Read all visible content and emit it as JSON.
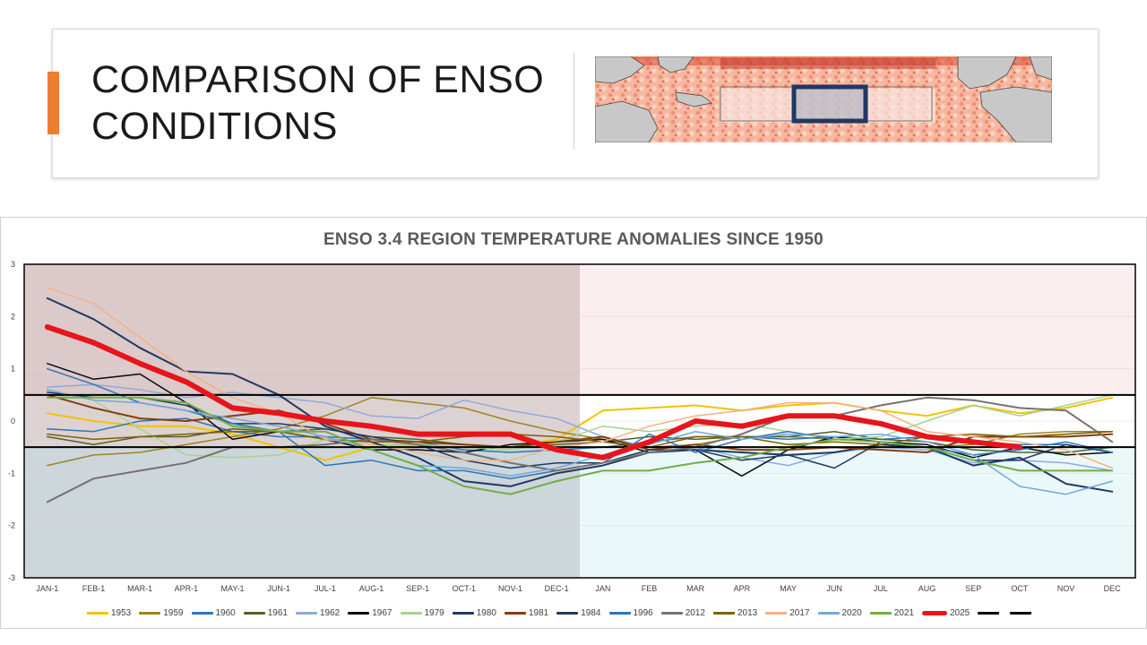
{
  "slide": {
    "title_line1": "COMPARISON OF ENSO",
    "title_line2": "CONDITIONS",
    "accent_color": "#ed7d31"
  },
  "map": {
    "description_icon": "sst-anomaly-map-icon"
  },
  "chart_data": {
    "type": "line",
    "title": "ENSO 3.4 REGION TEMPERATURE ANOMALIES SINCE 1950",
    "xlabel": "",
    "ylabel": "",
    "ylim": [
      -3,
      3
    ],
    "yticks": [
      "3",
      "2",
      "1",
      "0",
      "-1",
      "-2",
      "-3"
    ],
    "categories": [
      "JAN-1",
      "FEB-1",
      "MAR-1",
      "APR-1",
      "MAY-1",
      "JUN-1",
      "JUL-1",
      "AUG-1",
      "SEP-1",
      "OCT-1",
      "NOV-1",
      "DEC-1",
      "JAN",
      "FEB",
      "MAR",
      "APR",
      "MAY",
      "JUN",
      "JUL",
      "AUG",
      "SEP",
      "OCT",
      "NOV",
      "DEC"
    ],
    "regions": [
      {
        "name": "prior-year-warm",
        "y_range": [
          0.5,
          3
        ],
        "x_range": [
          0,
          12
        ],
        "color": "#dcc9c9"
      },
      {
        "name": "prior-year-neutral",
        "y_range": [
          -0.5,
          0.5
        ],
        "x_range": [
          0,
          12
        ],
        "color": "#ddd2d2"
      },
      {
        "name": "prior-year-cool",
        "y_range": [
          -3,
          -0.5
        ],
        "x_range": [
          0,
          12
        ],
        "color": "#cdd6da"
      },
      {
        "name": "current-year-warm",
        "y_range": [
          0.5,
          3
        ],
        "x_range": [
          12,
          24
        ],
        "color": "#fbeeee"
      },
      {
        "name": "current-year-neutral",
        "y_range": [
          -0.5,
          0.5
        ],
        "x_range": [
          12,
          24
        ],
        "color": "#ffffff"
      },
      {
        "name": "current-year-cool",
        "y_range": [
          -3,
          -0.5
        ],
        "x_range": [
          12,
          24
        ],
        "color": "#ebf8fa"
      }
    ],
    "thresholds": [
      0.5,
      -0.5
    ],
    "series": [
      {
        "name": "1953",
        "color": "#f2c200",
        "width": 2,
        "values": [
          0.15,
          0.0,
          -0.1,
          -0.1,
          -0.25,
          -0.5,
          -0.75,
          -0.5,
          -0.45,
          -0.5,
          -0.5,
          -0.35,
          0.2,
          0.25,
          0.3,
          0.2,
          0.3,
          0.35,
          0.2,
          0.1,
          0.3,
          0.15,
          0.25,
          0.45
        ]
      },
      {
        "name": "1959",
        "color": "#9c8420",
        "width": 1.5,
        "values": [
          -0.85,
          -0.65,
          -0.6,
          -0.45,
          -0.3,
          -0.15,
          0.1,
          0.45,
          0.35,
          0.25,
          0.0,
          -0.2,
          -0.35,
          -0.5,
          -0.45,
          -0.3,
          -0.3,
          -0.35,
          -0.4,
          -0.5,
          -0.45,
          -0.25,
          -0.2,
          -0.2
        ]
      },
      {
        "name": "1960",
        "color": "#2e75b6",
        "width": 1.5,
        "values": [
          -0.15,
          -0.2,
          0.0,
          0.05,
          -0.2,
          -0.3,
          -0.3,
          -0.35,
          -0.4,
          -0.55,
          -0.6,
          -0.55,
          -0.5,
          -0.4,
          -0.3,
          -0.3,
          -0.35,
          -0.3,
          -0.35,
          -0.3,
          -0.4,
          -0.45,
          -0.45,
          -0.6
        ]
      },
      {
        "name": "1961",
        "color": "#4f6228",
        "width": 1.5,
        "values": [
          -0.3,
          -0.45,
          -0.3,
          -0.3,
          -0.15,
          -0.2,
          -0.15,
          -0.3,
          -0.35,
          -0.45,
          -0.5,
          -0.45,
          -0.4,
          -0.3,
          -0.35,
          -0.3,
          -0.3,
          -0.2,
          -0.35,
          -0.4,
          -0.55,
          -0.6,
          -0.6,
          -0.5
        ]
      },
      {
        "name": "1962",
        "color": "#8eaadb",
        "width": 1.5,
        "values": [
          0.65,
          0.7,
          0.6,
          0.45,
          0.55,
          0.45,
          0.35,
          0.1,
          0.05,
          0.4,
          0.2,
          0.05,
          -0.3,
          -0.5,
          -0.5,
          -0.7,
          -0.85,
          -0.6,
          -0.5,
          -0.55,
          -0.8,
          -0.75,
          -0.8,
          -0.95
        ]
      },
      {
        "name": "1967",
        "color": "#0a0a0a",
        "width": 1.5,
        "values": [
          1.1,
          0.8,
          0.9,
          0.35,
          -0.35,
          -0.2,
          -0.35,
          -0.55,
          -0.55,
          -0.6,
          -0.45,
          -0.4,
          -0.35,
          -0.6,
          -0.55,
          -1.05,
          -0.55,
          -0.3,
          -0.4,
          -0.45,
          -0.7,
          -0.5,
          -0.65,
          -0.6
        ]
      },
      {
        "name": "1979",
        "color": "#a9d18e",
        "width": 1.5,
        "values": [
          0.6,
          0.4,
          -0.15,
          -0.65,
          -0.7,
          -0.65,
          -0.35,
          -0.45,
          -0.45,
          -0.5,
          -0.55,
          -0.4,
          -0.1,
          -0.2,
          -0.1,
          -0.05,
          -0.2,
          -0.35,
          -0.3,
          0.0,
          0.3,
          0.1,
          0.3,
          0.5
        ]
      },
      {
        "name": "1980",
        "color": "#1f3864",
        "width": 2,
        "values": [
          2.35,
          1.95,
          1.4,
          0.95,
          0.9,
          0.5,
          -0.1,
          -0.4,
          -0.7,
          -1.15,
          -1.25,
          -1.0,
          -0.85,
          -0.6,
          -0.55,
          -0.6,
          -0.65,
          -0.6,
          -0.45,
          -0.5,
          -0.85,
          -0.7,
          -1.2,
          -1.35
        ]
      },
      {
        "name": "1981",
        "color": "#843c0c",
        "width": 2,
        "values": [
          0.5,
          0.25,
          0.05,
          0.0,
          0.1,
          0.2,
          -0.05,
          -0.35,
          -0.4,
          -0.45,
          -0.5,
          -0.4,
          -0.3,
          -0.55,
          -0.45,
          -0.55,
          -0.55,
          -0.5,
          -0.55,
          -0.6,
          -0.3,
          -0.3,
          -0.3,
          -0.25
        ]
      },
      {
        "name": "1984",
        "color": "#203864",
        "width": 1.5,
        "values": [
          0.55,
          0.45,
          0.45,
          0.3,
          -0.05,
          -0.05,
          -0.15,
          -0.3,
          -0.45,
          -0.75,
          -0.9,
          -0.8,
          -0.8,
          -0.55,
          -0.55,
          -0.75,
          -0.65,
          -0.9,
          -0.4,
          -0.5,
          -0.75,
          -0.75,
          -0.45,
          -0.6
        ]
      },
      {
        "name": "1996",
        "color": "#2e75b6",
        "width": 1.5,
        "values": [
          1.0,
          0.7,
          0.35,
          0.2,
          -0.05,
          -0.2,
          -0.85,
          -0.75,
          -0.95,
          -0.95,
          -1.1,
          -0.95,
          -0.8,
          -0.25,
          -0.6,
          -0.35,
          -0.2,
          -0.35,
          -0.4,
          -0.5,
          -0.65,
          -0.55,
          -0.4,
          -0.6
        ]
      },
      {
        "name": "2012",
        "color": "#767171",
        "width": 2,
        "values": [
          -1.55,
          -1.1,
          -0.95,
          -0.8,
          -0.5,
          -0.5,
          -0.45,
          -0.35,
          -0.45,
          -0.6,
          -0.8,
          -0.95,
          -0.8,
          -0.6,
          -0.5,
          -0.25,
          0.1,
          0.1,
          0.3,
          0.45,
          0.4,
          0.25,
          0.2,
          -0.4
        ]
      },
      {
        "name": "2013",
        "color": "#7f6000",
        "width": 1.5,
        "values": [
          -0.25,
          -0.35,
          -0.3,
          -0.25,
          -0.2,
          -0.2,
          -0.35,
          -0.4,
          -0.4,
          -0.3,
          -0.25,
          -0.3,
          -0.4,
          -0.5,
          -0.3,
          -0.3,
          -0.45,
          -0.4,
          -0.45,
          -0.3,
          -0.25,
          -0.3,
          -0.25,
          -0.2
        ]
      },
      {
        "name": "2017",
        "color": "#f4b183",
        "width": 1.5,
        "values": [
          2.55,
          2.25,
          1.6,
          0.95,
          0.45,
          0.15,
          -0.35,
          -0.45,
          -0.6,
          -0.75,
          -0.75,
          -0.5,
          -0.4,
          -0.1,
          0.1,
          0.2,
          0.35,
          0.35,
          0.2,
          -0.2,
          -0.3,
          -0.4,
          -0.55,
          -0.9
        ]
      },
      {
        "name": "2020",
        "color": "#6fa8dc",
        "width": 1.5,
        "values": [
          0.6,
          0.4,
          0.35,
          0.2,
          0.05,
          -0.1,
          -0.3,
          -0.55,
          -0.85,
          -0.9,
          -1.05,
          -0.9,
          -0.65,
          -0.45,
          -0.2,
          -0.35,
          -0.25,
          -0.3,
          -0.25,
          -0.4,
          -0.65,
          -1.25,
          -1.4,
          -1.15
        ]
      },
      {
        "name": "2021",
        "color": "#70ad47",
        "width": 2,
        "values": [
          0.45,
          0.45,
          0.45,
          0.35,
          -0.1,
          -0.2,
          -0.2,
          -0.55,
          -0.85,
          -1.25,
          -1.4,
          -1.15,
          -0.95,
          -0.95,
          -0.8,
          -0.7,
          -0.5,
          -0.35,
          -0.4,
          -0.5,
          -0.75,
          -0.95,
          -0.95,
          -0.95
        ]
      },
      {
        "name": "2025",
        "color": "#e8141b",
        "width": 6,
        "values": [
          1.8,
          1.5,
          1.1,
          0.75,
          0.25,
          0.15,
          0.0,
          -0.1,
          -0.25,
          -0.25,
          -0.25,
          -0.55,
          -0.7,
          -0.4,
          0.0,
          -0.1,
          0.1,
          0.1,
          -0.05,
          -0.3,
          -0.4,
          -0.5,
          null,
          null
        ]
      }
    ],
    "threshold_legend": [
      {
        "name": "",
        "color": "#000000"
      },
      {
        "name": "",
        "color": "#000000"
      }
    ]
  }
}
